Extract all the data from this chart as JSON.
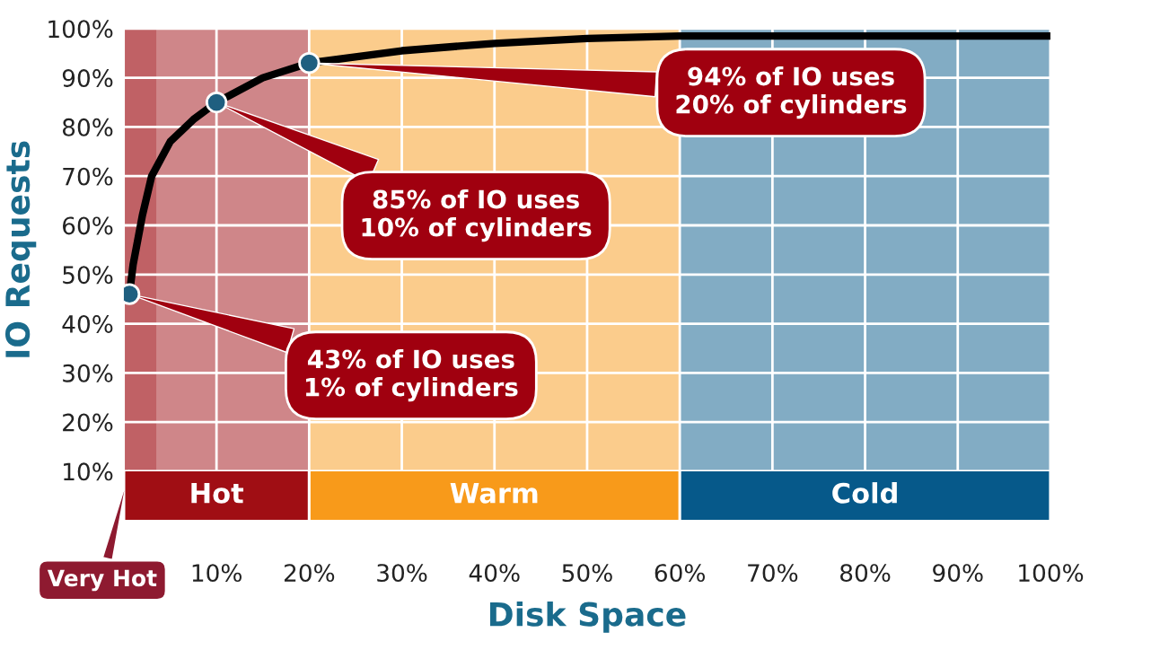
{
  "chart_data": {
    "type": "line",
    "xlabel": "Disk Space",
    "ylabel": "IO Requests",
    "xlim": [
      0,
      100
    ],
    "ylim": [
      10,
      100
    ],
    "xticks": [
      {
        "value": 10,
        "label": "10%"
      },
      {
        "value": 20,
        "label": "20%"
      },
      {
        "value": 30,
        "label": "30%"
      },
      {
        "value": 40,
        "label": "40%"
      },
      {
        "value": 50,
        "label": "50%"
      },
      {
        "value": 60,
        "label": "60%"
      },
      {
        "value": 70,
        "label": "70%"
      },
      {
        "value": 80,
        "label": "80%"
      },
      {
        "value": 90,
        "label": "90%"
      },
      {
        "value": 100,
        "label": "100%"
      }
    ],
    "yticks": [
      {
        "value": 10,
        "label": "10%"
      },
      {
        "value": 20,
        "label": "20%"
      },
      {
        "value": 30,
        "label": "30%"
      },
      {
        "value": 40,
        "label": "40%"
      },
      {
        "value": 50,
        "label": "50%"
      },
      {
        "value": 60,
        "label": "60%"
      },
      {
        "value": 70,
        "label": "70%"
      },
      {
        "value": 80,
        "label": "80%"
      },
      {
        "value": 90,
        "label": "90%"
      },
      {
        "value": 100,
        "label": "100%"
      }
    ],
    "grid": true,
    "series": [
      {
        "type": "line",
        "color": "#000000",
        "x": [
          0.6,
          1,
          2,
          3,
          5,
          7.5,
          10,
          15,
          20,
          30,
          40,
          50,
          60,
          100
        ],
        "values": [
          46,
          52,
          62,
          70,
          77,
          81.5,
          85,
          90,
          93,
          95.5,
          97,
          98,
          98.5,
          98.5
        ]
      },
      {
        "type": "scatter",
        "color": "#1f5f80",
        "x": [
          0.6,
          10,
          20
        ],
        "values": [
          46,
          85,
          93
        ]
      }
    ],
    "bands": [
      {
        "axis": "x",
        "from": 0,
        "to": 20,
        "label": "Hot",
        "color": "#a00e14"
      },
      {
        "axis": "x",
        "from": 0,
        "to": 3.5,
        "label": "Very Hot",
        "color": "#a00e14"
      },
      {
        "axis": "x",
        "from": 20,
        "to": 60,
        "label": "Warm",
        "color": "#f89a1a"
      },
      {
        "axis": "x",
        "from": 60,
        "to": 100,
        "label": "Cold",
        "color": "#06598a"
      }
    ],
    "annotations": [
      {
        "text": "43% of IO uses\n1% of cylinders",
        "x": 0.6,
        "y": 46
      },
      {
        "text": "85% of IO uses\n10% of cylinders",
        "x": 10,
        "y": 85
      },
      {
        "text": "94% of IO uses\n20% of cylinders",
        "x": 20,
        "y": 93
      }
    ]
  }
}
